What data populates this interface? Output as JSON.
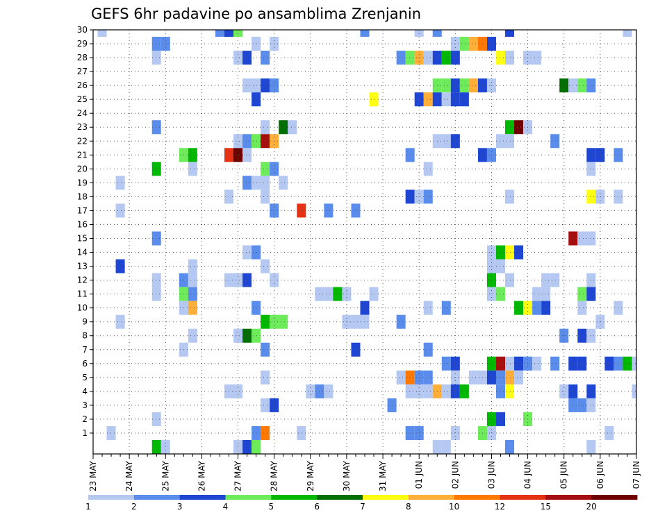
{
  "chart_data": {
    "type": "heatmap",
    "title": "GEFS 6hr padavine po ansamblima Zrenjanin",
    "xlabel": "",
    "ylabel": "",
    "y_members": [
      1,
      2,
      3,
      4,
      5,
      6,
      7,
      8,
      9,
      10,
      11,
      12,
      13,
      14,
      15,
      16,
      17,
      18,
      19,
      20,
      21,
      22,
      23,
      24,
      25,
      26,
      27,
      28,
      29,
      30
    ],
    "x_tick_labels": [
      "23 MAY",
      "24 MAY",
      "25 MAY",
      "26 MAY",
      "27 MAY",
      "28 MAY",
      "29 MAY",
      "30 MAY",
      "31 MAY",
      "01 JUN",
      "02 JUN",
      "03 JUN",
      "04 JUN",
      "05 JUN",
      "06 JUN",
      "07 JUN"
    ],
    "x_step_hours": 6,
    "x_steps_total": 60,
    "grid": true,
    "legend_placement": "bottom",
    "legend": {
      "levels": [
        "1",
        "2",
        "3",
        "4",
        "5",
        "6",
        "7",
        "8",
        "10",
        "12",
        "15",
        "20"
      ],
      "colors": [
        "#b4c8f2",
        "#5a8cec",
        "#1e46d2",
        "#6eeb5a",
        "#00b800",
        "#006e00",
        "#ffff14",
        "#ffaf37",
        "#ff7800",
        "#e63214",
        "#a50f0f",
        "#6e0000"
      ]
    },
    "cells": [
      [
        1,
        30,
        1
      ],
      [
        14,
        30,
        2
      ],
      [
        15,
        30,
        3
      ],
      [
        16,
        30,
        4
      ],
      [
        30,
        30,
        2
      ],
      [
        36,
        30,
        1
      ],
      [
        38,
        30,
        2
      ],
      [
        46,
        30,
        3
      ],
      [
        59,
        30,
        1
      ],
      [
        7,
        29,
        2
      ],
      [
        8,
        29,
        2
      ],
      [
        18,
        29,
        1
      ],
      [
        20,
        29,
        1
      ],
      [
        40,
        29,
        1
      ],
      [
        41,
        29,
        4
      ],
      [
        42,
        29,
        8
      ],
      [
        43,
        29,
        9
      ],
      [
        44,
        29,
        3
      ],
      [
        7,
        28,
        1
      ],
      [
        16,
        28,
        1
      ],
      [
        17,
        28,
        3
      ],
      [
        19,
        28,
        2
      ],
      [
        34,
        28,
        2
      ],
      [
        35,
        28,
        4
      ],
      [
        36,
        28,
        8
      ],
      [
        37,
        28,
        1
      ],
      [
        38,
        28,
        3
      ],
      [
        39,
        28,
        5
      ],
      [
        40,
        28,
        3
      ],
      [
        45,
        28,
        7
      ],
      [
        46,
        28,
        1
      ],
      [
        48,
        28,
        1
      ],
      [
        49,
        28,
        1
      ],
      [
        17,
        26,
        1
      ],
      [
        18,
        26,
        1
      ],
      [
        19,
        26,
        3
      ],
      [
        20,
        26,
        2
      ],
      [
        38,
        26,
        4
      ],
      [
        39,
        26,
        4
      ],
      [
        40,
        26,
        3
      ],
      [
        41,
        26,
        4
      ],
      [
        42,
        26,
        8
      ],
      [
        43,
        26,
        3
      ],
      [
        44,
        26,
        1
      ],
      [
        52,
        26,
        6
      ],
      [
        53,
        26,
        1
      ],
      [
        54,
        26,
        4
      ],
      [
        55,
        26,
        2
      ],
      [
        18,
        25,
        3
      ],
      [
        31,
        25,
        7
      ],
      [
        36,
        25,
        3
      ],
      [
        37,
        25,
        8
      ],
      [
        38,
        25,
        3
      ],
      [
        39,
        25,
        1
      ],
      [
        40,
        25,
        3
      ],
      [
        41,
        25,
        3
      ],
      [
        7,
        23,
        2
      ],
      [
        19,
        23,
        1
      ],
      [
        21,
        23,
        6
      ],
      [
        22,
        23,
        1
      ],
      [
        46,
        23,
        5
      ],
      [
        47,
        23,
        12
      ],
      [
        48,
        23,
        1
      ],
      [
        16,
        22,
        1
      ],
      [
        17,
        22,
        2
      ],
      [
        18,
        22,
        4
      ],
      [
        19,
        22,
        11
      ],
      [
        20,
        22,
        8
      ],
      [
        38,
        22,
        1
      ],
      [
        39,
        22,
        1
      ],
      [
        40,
        22,
        3
      ],
      [
        45,
        22,
        1
      ],
      [
        46,
        22,
        1
      ],
      [
        51,
        22,
        2
      ],
      [
        10,
        21,
        4
      ],
      [
        11,
        21,
        5
      ],
      [
        15,
        21,
        10
      ],
      [
        16,
        21,
        12
      ],
      [
        17,
        21,
        1
      ],
      [
        35,
        21,
        2
      ],
      [
        43,
        21,
        3
      ],
      [
        44,
        21,
        2
      ],
      [
        55,
        21,
        3
      ],
      [
        56,
        21,
        3
      ],
      [
        58,
        21,
        2
      ],
      [
        7,
        20,
        5
      ],
      [
        11,
        20,
        1
      ],
      [
        19,
        20,
        4
      ],
      [
        20,
        20,
        2
      ],
      [
        37,
        20,
        1
      ],
      [
        55,
        20,
        1
      ],
      [
        3,
        19,
        1
      ],
      [
        17,
        19,
        2
      ],
      [
        18,
        19,
        1
      ],
      [
        19,
        19,
        1
      ],
      [
        21,
        19,
        1
      ],
      [
        15,
        18,
        1
      ],
      [
        19,
        18,
        1
      ],
      [
        35,
        18,
        3
      ],
      [
        36,
        18,
        1
      ],
      [
        37,
        18,
        2
      ],
      [
        46,
        18,
        1
      ],
      [
        55,
        18,
        7
      ],
      [
        56,
        18,
        1
      ],
      [
        58,
        18,
        1
      ],
      [
        3,
        17,
        1
      ],
      [
        20,
        17,
        2
      ],
      [
        23,
        17,
        10
      ],
      [
        26,
        17,
        2
      ],
      [
        29,
        17,
        2
      ],
      [
        7,
        15,
        2
      ],
      [
        53,
        15,
        11
      ],
      [
        54,
        15,
        1
      ],
      [
        55,
        15,
        1
      ],
      [
        17,
        14,
        1
      ],
      [
        18,
        14,
        2
      ],
      [
        44,
        14,
        1
      ],
      [
        45,
        14,
        5
      ],
      [
        46,
        14,
        7
      ],
      [
        47,
        14,
        3
      ],
      [
        3,
        13,
        3
      ],
      [
        11,
        13,
        1
      ],
      [
        19,
        13,
        1
      ],
      [
        44,
        13,
        1
      ],
      [
        45,
        13,
        1
      ],
      [
        7,
        12,
        1
      ],
      [
        10,
        12,
        2
      ],
      [
        11,
        12,
        1
      ],
      [
        15,
        12,
        1
      ],
      [
        16,
        12,
        1
      ],
      [
        17,
        12,
        3
      ],
      [
        20,
        12,
        1
      ],
      [
        44,
        12,
        5
      ],
      [
        46,
        12,
        1
      ],
      [
        50,
        12,
        1
      ],
      [
        51,
        12,
        1
      ],
      [
        55,
        12,
        1
      ],
      [
        7,
        11,
        1
      ],
      [
        10,
        11,
        4
      ],
      [
        11,
        11,
        2
      ],
      [
        25,
        11,
        1
      ],
      [
        26,
        11,
        1
      ],
      [
        27,
        11,
        5
      ],
      [
        28,
        11,
        1
      ],
      [
        31,
        11,
        1
      ],
      [
        44,
        11,
        1
      ],
      [
        45,
        11,
        4
      ],
      [
        49,
        11,
        1
      ],
      [
        50,
        11,
        1
      ],
      [
        54,
        11,
        4
      ],
      [
        55,
        11,
        3
      ],
      [
        10,
        10,
        1
      ],
      [
        11,
        10,
        8
      ],
      [
        18,
        10,
        2
      ],
      [
        30,
        10,
        3
      ],
      [
        37,
        10,
        1
      ],
      [
        39,
        10,
        2
      ],
      [
        47,
        10,
        5
      ],
      [
        48,
        10,
        7
      ],
      [
        49,
        10,
        2
      ],
      [
        50,
        10,
        3
      ],
      [
        54,
        10,
        1
      ],
      [
        58,
        10,
        1
      ],
      [
        3,
        9,
        1
      ],
      [
        19,
        9,
        5
      ],
      [
        20,
        9,
        4
      ],
      [
        21,
        9,
        4
      ],
      [
        28,
        9,
        1
      ],
      [
        29,
        9,
        1
      ],
      [
        30,
        9,
        1
      ],
      [
        34,
        9,
        2
      ],
      [
        56,
        9,
        1
      ],
      [
        11,
        8,
        1
      ],
      [
        16,
        8,
        1
      ],
      [
        17,
        8,
        6
      ],
      [
        18,
        8,
        4
      ],
      [
        52,
        8,
        2
      ],
      [
        54,
        8,
        3
      ],
      [
        55,
        8,
        1
      ],
      [
        10,
        7,
        1
      ],
      [
        19,
        7,
        2
      ],
      [
        29,
        7,
        3
      ],
      [
        37,
        7,
        2
      ],
      [
        39,
        6,
        2
      ],
      [
        40,
        6,
        3
      ],
      [
        44,
        6,
        5
      ],
      [
        45,
        6,
        11
      ],
      [
        46,
        6,
        1
      ],
      [
        47,
        6,
        3
      ],
      [
        48,
        6,
        2
      ],
      [
        49,
        6,
        1
      ],
      [
        51,
        6,
        2
      ],
      [
        53,
        6,
        3
      ],
      [
        54,
        6,
        3
      ],
      [
        57,
        6,
        3
      ],
      [
        58,
        6,
        2
      ],
      [
        59,
        6,
        5
      ],
      [
        60,
        6,
        1
      ],
      [
        19,
        5,
        1
      ],
      [
        34,
        5,
        1
      ],
      [
        35,
        5,
        9
      ],
      [
        36,
        5,
        2
      ],
      [
        37,
        5,
        2
      ],
      [
        40,
        5,
        1
      ],
      [
        42,
        5,
        1
      ],
      [
        43,
        5,
        1
      ],
      [
        44,
        5,
        3
      ],
      [
        45,
        5,
        2
      ],
      [
        46,
        5,
        8
      ],
      [
        47,
        5,
        1
      ],
      [
        15,
        4,
        1
      ],
      [
        16,
        4,
        1
      ],
      [
        24,
        4,
        1
      ],
      [
        25,
        4,
        2
      ],
      [
        26,
        4,
        1
      ],
      [
        35,
        4,
        1
      ],
      [
        36,
        4,
        1
      ],
      [
        37,
        4,
        1
      ],
      [
        38,
        4,
        8
      ],
      [
        39,
        4,
        1
      ],
      [
        40,
        4,
        3
      ],
      [
        41,
        4,
        5
      ],
      [
        45,
        4,
        2
      ],
      [
        46,
        4,
        7
      ],
      [
        52,
        4,
        1
      ],
      [
        53,
        4,
        3
      ],
      [
        55,
        4,
        3
      ],
      [
        60,
        4,
        1
      ],
      [
        19,
        3,
        1
      ],
      [
        20,
        3,
        3
      ],
      [
        33,
        3,
        2
      ],
      [
        53,
        3,
        2
      ],
      [
        54,
        3,
        2
      ],
      [
        55,
        3,
        1
      ],
      [
        7,
        2,
        1
      ],
      [
        44,
        2,
        5
      ],
      [
        45,
        2,
        3
      ],
      [
        48,
        2,
        4
      ],
      [
        2,
        1,
        1
      ],
      [
        18,
        1,
        2
      ],
      [
        19,
        1,
        9
      ],
      [
        23,
        1,
        1
      ],
      [
        35,
        1,
        2
      ],
      [
        36,
        1,
        2
      ],
      [
        40,
        1,
        1
      ],
      [
        43,
        1,
        4
      ],
      [
        44,
        1,
        1
      ],
      [
        57,
        1,
        1
      ],
      [
        7,
        0,
        5
      ],
      [
        8,
        0,
        1
      ],
      [
        16,
        0,
        1
      ],
      [
        17,
        0,
        3
      ],
      [
        18,
        0,
        4
      ],
      [
        38,
        0,
        1
      ],
      [
        39,
        0,
        1
      ],
      [
        46,
        0,
        2
      ],
      [
        55,
        0,
        1
      ]
    ]
  }
}
